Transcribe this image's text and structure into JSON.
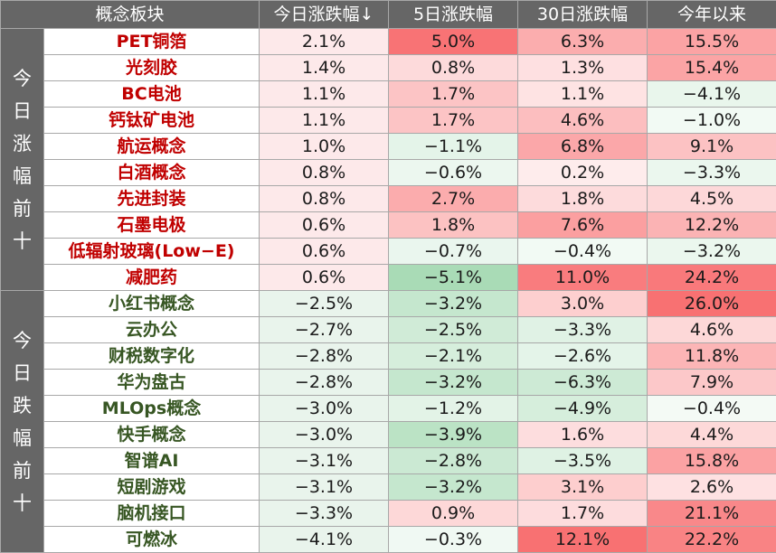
{
  "chart_data": {
    "type": "table",
    "columns": [
      "概念板块",
      "今日涨跌幅↓",
      "5日涨跌幅",
      "30日涨跌幅",
      "今年以来"
    ],
    "groups": [
      {
        "label": "今日涨幅前十",
        "rows": [
          {
            "name": "PET铜箔",
            "today": "2.1%",
            "d5": "5.0%",
            "d30": "6.3%",
            "ytd": "15.5%"
          },
          {
            "name": "光刻胶",
            "today": "1.4%",
            "d5": "0.8%",
            "d30": "1.3%",
            "ytd": "15.4%"
          },
          {
            "name": "BC电池",
            "today": "1.1%",
            "d5": "1.7%",
            "d30": "1.1%",
            "ytd": "−4.1%"
          },
          {
            "name": "钙钛矿电池",
            "today": "1.1%",
            "d5": "1.7%",
            "d30": "4.6%",
            "ytd": "−1.0%"
          },
          {
            "name": "航运概念",
            "today": "1.0%",
            "d5": "−1.1%",
            "d30": "6.8%",
            "ytd": "9.1%"
          },
          {
            "name": "白酒概念",
            "today": "0.8%",
            "d5": "−0.6%",
            "d30": "0.2%",
            "ytd": "−3.3%"
          },
          {
            "name": "先进封装",
            "today": "0.8%",
            "d5": "2.7%",
            "d30": "1.8%",
            "ytd": "4.5%"
          },
          {
            "name": "石墨电极",
            "today": "0.6%",
            "d5": "1.8%",
            "d30": "7.6%",
            "ytd": "12.2%"
          },
          {
            "name": "低辐射玻璃(Low−E)",
            "today": "0.6%",
            "d5": "−0.7%",
            "d30": "−0.4%",
            "ytd": "−3.2%"
          },
          {
            "name": "减肥药",
            "today": "0.6%",
            "d5": "−5.1%",
            "d30": "11.0%",
            "ytd": "24.2%"
          }
        ]
      },
      {
        "label": "今日跌幅前十",
        "rows": [
          {
            "name": "小红书概念",
            "today": "−2.5%",
            "d5": "−3.2%",
            "d30": "3.0%",
            "ytd": "26.0%"
          },
          {
            "name": "云办公",
            "today": "−2.7%",
            "d5": "−2.5%",
            "d30": "−3.3%",
            "ytd": "4.6%"
          },
          {
            "name": "财税数字化",
            "today": "−2.8%",
            "d5": "−2.1%",
            "d30": "−2.6%",
            "ytd": "11.8%"
          },
          {
            "name": "华为盘古",
            "today": "−2.8%",
            "d5": "−3.2%",
            "d30": "−6.3%",
            "ytd": "7.9%"
          },
          {
            "name": "MLOps概念",
            "today": "−3.0%",
            "d5": "−1.2%",
            "d30": "−4.9%",
            "ytd": "−0.4%"
          },
          {
            "name": "快手概念",
            "today": "−3.0%",
            "d5": "−3.9%",
            "d30": "1.6%",
            "ytd": "4.4%"
          },
          {
            "name": "智谱AI",
            "today": "−3.1%",
            "d5": "−2.8%",
            "d30": "−3.5%",
            "ytd": "15.8%"
          },
          {
            "name": "短剧游戏",
            "today": "−3.1%",
            "d5": "−3.2%",
            "d30": "3.1%",
            "ytd": "2.6%"
          },
          {
            "name": "脑机接口",
            "today": "−3.3%",
            "d5": "0.9%",
            "d30": "1.7%",
            "ytd": "21.1%"
          },
          {
            "name": "可燃冰",
            "today": "−4.1%",
            "d5": "−0.3%",
            "d30": "12.1%",
            "ytd": "22.2%"
          }
        ]
      }
    ]
  },
  "colors": {
    "header_bg": "#666666",
    "up_name": "#c00000",
    "down_name": "#375623",
    "positive_max": "#f8696b",
    "negative_max": "#63be7b",
    "neutral": "#ffffff"
  }
}
